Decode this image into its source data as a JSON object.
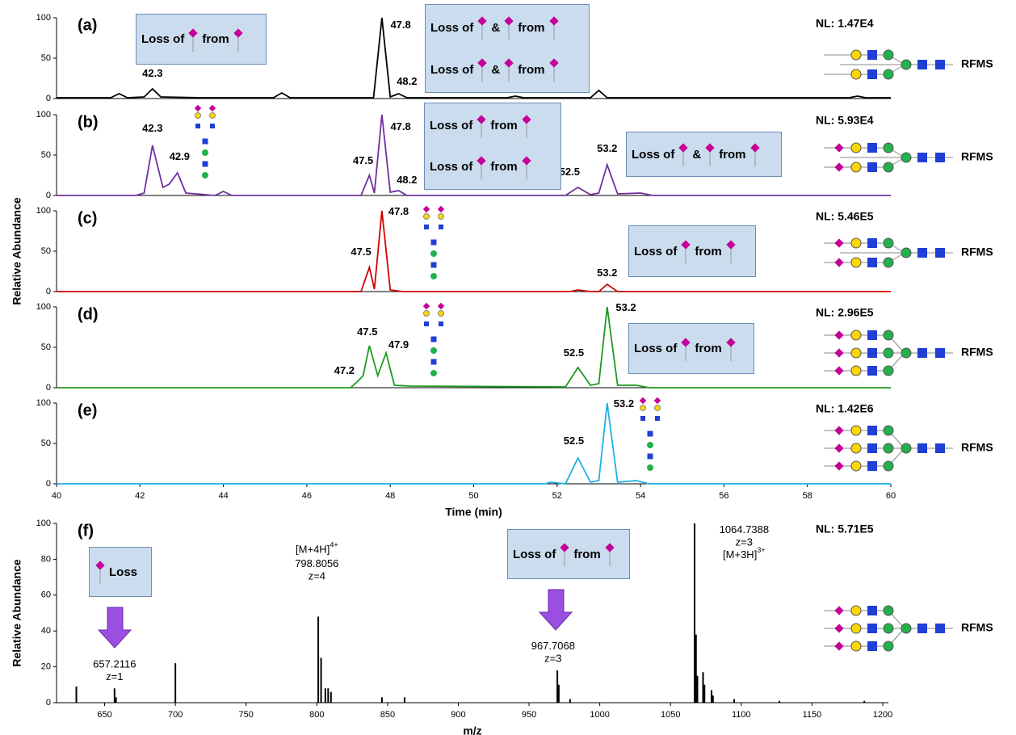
{
  "chart_data": [
    {
      "type": "line",
      "title": "(a)",
      "nl": "NL: 1.47E4",
      "color": "#000000",
      "x": [
        40,
        41.3,
        41.5,
        41.7,
        42.1,
        42.3,
        42.5,
        43.5,
        45.2,
        45.4,
        45.6,
        47.6,
        47.8,
        48.0,
        48.2,
        48.4,
        50.8,
        51.0,
        51.2,
        52.8,
        53.0,
        53.2,
        59.0,
        59.2,
        59.4,
        60
      ],
      "values": [
        1,
        1,
        6,
        1,
        2,
        12,
        2,
        1,
        1,
        7,
        1,
        1,
        100,
        2,
        6,
        1,
        1,
        3,
        1,
        1,
        10,
        1,
        1,
        3,
        1,
        1
      ],
      "xlim": [
        40,
        60
      ],
      "ylim": [
        0,
        100
      ],
      "yticks": [
        0,
        50,
        100
      ],
      "annotations": [
        {
          "text": "42.3",
          "x": 42.3,
          "y": 30
        },
        {
          "text": "47.8",
          "x": 48.25,
          "y": 90
        },
        {
          "text": "48.2",
          "x": 48.4,
          "y": 20
        }
      ],
      "boxes": [
        {
          "lines": [
            [
              "Loss of",
              "from"
            ]
          ]
        },
        {
          "lines": [
            [
              "Loss of",
              "&",
              "from"
            ],
            [
              "Loss of",
              "&",
              "from"
            ]
          ]
        }
      ],
      "glycan_label": "RFMS"
    },
    {
      "type": "line",
      "title": "(b)",
      "nl": "NL: 5.93E4",
      "color": "#7030a0",
      "x": [
        40,
        41.9,
        42.1,
        42.3,
        42.55,
        42.7,
        42.9,
        43.1,
        43.8,
        44.0,
        44.2,
        47.3,
        47.5,
        47.62,
        47.8,
        48.0,
        48.2,
        48.4,
        52.2,
        52.5,
        52.8,
        53.0,
        53.2,
        53.45,
        54.0,
        54.3,
        60
      ],
      "values": [
        0,
        0,
        3,
        62,
        10,
        14,
        28,
        3,
        0,
        5,
        0,
        0,
        25,
        3,
        100,
        4,
        6,
        0,
        0,
        10,
        1,
        3,
        38,
        2,
        3,
        0,
        0
      ],
      "xlim": [
        40,
        60
      ],
      "ylim": [
        0,
        100
      ],
      "yticks": [
        0,
        50,
        100
      ],
      "annotations": [
        {
          "text": "42.3",
          "x": 42.3,
          "y": 82
        },
        {
          "text": "42.9",
          "x": 42.95,
          "y": 47
        },
        {
          "text": "47.5",
          "x": 47.35,
          "y": 42
        },
        {
          "text": "47.8",
          "x": 48.25,
          "y": 84
        },
        {
          "text": "48.2",
          "x": 48.4,
          "y": 18
        },
        {
          "text": "52.5",
          "x": 52.3,
          "y": 28
        },
        {
          "text": "53.2",
          "x": 53.2,
          "y": 57
        }
      ],
      "boxes": [
        {
          "lines": [
            [
              "Loss of",
              "from"
            ],
            [
              "Loss of",
              "from"
            ]
          ]
        },
        {
          "lines": [
            [
              "Loss of",
              "&",
              "from"
            ]
          ]
        }
      ],
      "glycan_label": "RFMS"
    },
    {
      "type": "line",
      "title": "(c)",
      "nl": "NL: 5.46E5",
      "color": "#d40000",
      "x": [
        40,
        47.3,
        47.5,
        47.62,
        47.8,
        48.0,
        48.3,
        52.3,
        52.5,
        52.8,
        53.0,
        53.2,
        53.45,
        60
      ],
      "values": [
        0,
        0,
        30,
        3,
        100,
        2,
        0,
        0,
        2,
        0,
        0,
        9,
        0,
        0
      ],
      "xlim": [
        40,
        60
      ],
      "ylim": [
        0,
        100
      ],
      "yticks": [
        0,
        50,
        100
      ],
      "annotations": [
        {
          "text": "47.5",
          "x": 47.3,
          "y": 48
        },
        {
          "text": "47.8",
          "x": 48.2,
          "y": 98
        },
        {
          "text": "53.2",
          "x": 53.2,
          "y": 22
        }
      ],
      "boxes": [
        {
          "lines": [
            [
              "Loss of",
              "from"
            ]
          ]
        }
      ],
      "ylabel": "Relative Abundance",
      "glycan_label": "RFMS"
    },
    {
      "type": "line",
      "title": "(d)",
      "nl": "NL: 2.96E5",
      "color": "#1f9a1f",
      "x": [
        40,
        47.05,
        47.2,
        47.35,
        47.5,
        47.7,
        47.9,
        48.1,
        48.5,
        52.2,
        52.5,
        52.8,
        53.0,
        53.2,
        53.45,
        53.9,
        54.2,
        60
      ],
      "values": [
        0,
        0,
        7,
        15,
        52,
        15,
        43,
        3,
        2,
        1,
        25,
        3,
        5,
        100,
        3,
        3,
        0,
        0
      ],
      "xlim": [
        40,
        60
      ],
      "ylim": [
        0,
        100
      ],
      "yticks": [
        0,
        50,
        100
      ],
      "annotations": [
        {
          "text": "47.2",
          "x": 46.9,
          "y": 20
        },
        {
          "text": "47.5",
          "x": 47.45,
          "y": 68
        },
        {
          "text": "47.9",
          "x": 48.2,
          "y": 52
        },
        {
          "text": "52.5",
          "x": 52.4,
          "y": 42
        },
        {
          "text": "53.2",
          "x": 53.65,
          "y": 98
        }
      ],
      "boxes": [
        {
          "lines": [
            [
              "Loss of",
              "from"
            ]
          ]
        }
      ],
      "glycan_label": "RFMS"
    },
    {
      "type": "line",
      "title": "(e)",
      "nl": "NL: 1.42E6",
      "color": "#1fb0e6",
      "x": [
        40,
        51.7,
        51.85,
        52.2,
        52.5,
        52.8,
        53.0,
        53.2,
        53.45,
        53.9,
        54.2,
        60
      ],
      "values": [
        0,
        0,
        2,
        0,
        32,
        2,
        4,
        100,
        2,
        4,
        0,
        0
      ],
      "xlim": [
        40,
        60
      ],
      "ylim": [
        0,
        100
      ],
      "yticks": [
        0,
        50,
        100
      ],
      "xticks": [
        40,
        42,
        44,
        46,
        48,
        50,
        52,
        54,
        56,
        58,
        60
      ],
      "xlabel": "Time (min)",
      "annotations": [
        {
          "text": "52.5",
          "x": 52.4,
          "y": 52
        },
        {
          "text": "53.2",
          "x": 53.6,
          "y": 98
        }
      ],
      "glycan_label": "RFMS"
    },
    {
      "type": "spectrum",
      "title": "(f)",
      "nl": "NL: 5.71E5",
      "color": "#000000",
      "x": [
        630,
        657,
        658,
        700,
        801,
        803,
        806,
        808,
        810,
        846,
        862,
        970,
        971,
        979,
        1067,
        1068,
        1069,
        1073,
        1074,
        1079,
        1080,
        1095,
        1127,
        1187
      ],
      "values": [
        9,
        8,
        3,
        22,
        48,
        25,
        8,
        8,
        6,
        3,
        3,
        18,
        10,
        2,
        100,
        38,
        15,
        17,
        10,
        7,
        4,
        2,
        1,
        1
      ],
      "xlim": [
        616,
        1204
      ],
      "ylim": [
        0,
        100
      ],
      "yticks": [
        0,
        20,
        40,
        60,
        80,
        100
      ],
      "xticks": [
        650,
        700,
        750,
        800,
        850,
        900,
        950,
        1000,
        1050,
        1100,
        1150,
        1200
      ],
      "xlabel": "m/z",
      "ylabel": "Relative Abundance",
      "annotations": [
        {
          "text": "[M+4H]",
          "sup": "4+",
          "x": 800,
          "y": 85
        },
        {
          "text": "798.8056",
          "x": 800,
          "y": 77
        },
        {
          "text": "z=4",
          "x": 800,
          "y": 70
        },
        {
          "text": "657.2116",
          "x": 657,
          "y": 21
        },
        {
          "text": "z=1",
          "x": 657,
          "y": 14
        },
        {
          "text": "967.7068",
          "x": 967,
          "y": 31
        },
        {
          "text": "z=3",
          "x": 967,
          "y": 24
        },
        {
          "text": "1064.7388",
          "x": 1102,
          "y": 96
        },
        {
          "text": "z=3",
          "x": 1102,
          "y": 89
        },
        {
          "text": "[M+3H]",
          "sup": "3+",
          "x": 1102,
          "y": 82
        }
      ],
      "boxes": [
        {
          "lines": [
            [
              "Loss"
            ]
          ]
        },
        {
          "lines": [
            [
              "Loss of",
              "from"
            ]
          ]
        }
      ],
      "glycan_label": "RFMS"
    }
  ]
}
